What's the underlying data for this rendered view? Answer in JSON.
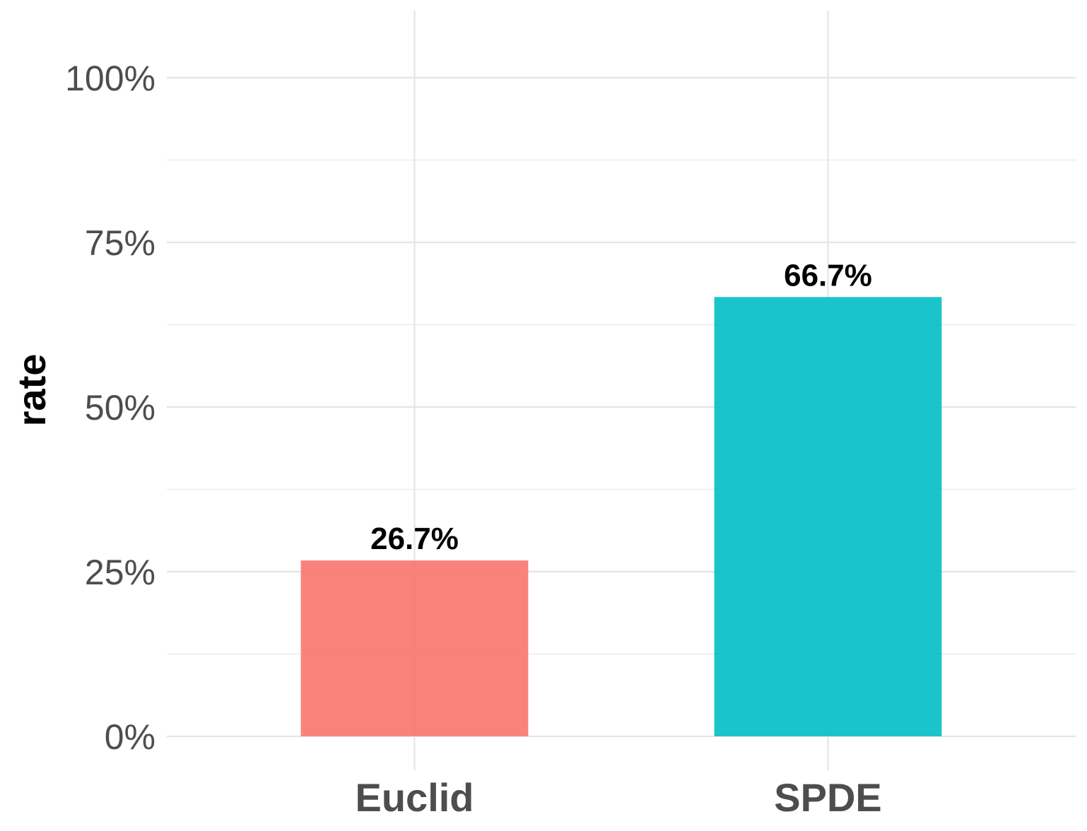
{
  "chart_data": {
    "type": "bar",
    "categories": [
      "Euclid",
      "SPDE"
    ],
    "values": [
      26.7,
      66.7
    ],
    "value_labels": [
      "26.7%",
      "66.7%"
    ],
    "colors": [
      "#F8766D",
      "#00BFC4"
    ],
    "ylabel": "rate",
    "ylim": [
      0,
      100
    ],
    "yticks": [
      0,
      25,
      50,
      75,
      100
    ],
    "ytick_labels": [
      "0%",
      "25%",
      "50%",
      "75%",
      "100%"
    ],
    "minor_yticks": [
      12.5,
      37.5,
      62.5,
      87.5
    ],
    "grid": true,
    "legend": "none"
  }
}
